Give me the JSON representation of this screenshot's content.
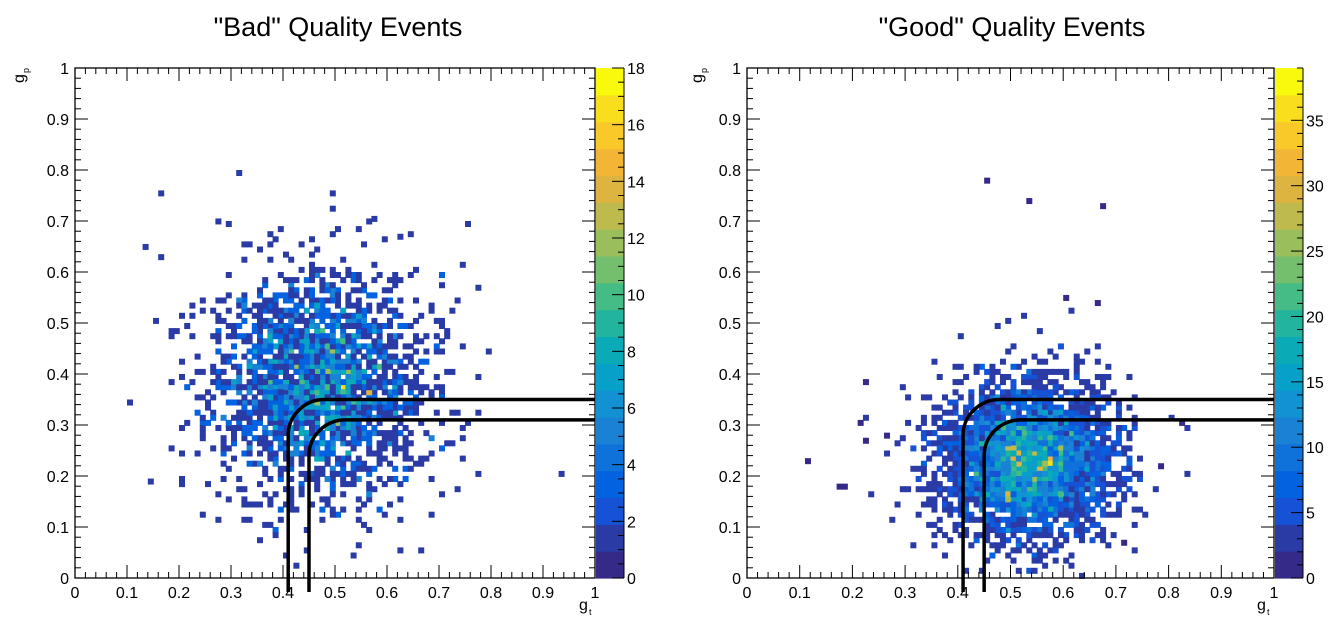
{
  "chart_data": [
    {
      "type": "heatmap",
      "title": "\"Bad\" Quality Events",
      "xlabel": "g",
      "xlabel_sub": "t",
      "ylabel": "g",
      "ylabel_sub": "p",
      "xlim": [
        0,
        1
      ],
      "ylim": [
        0,
        1
      ],
      "x_ticks": [
        "0",
        "0.1",
        "0.2",
        "0.3",
        "0.4",
        "0.5",
        "0.6",
        "0.7",
        "0.8",
        "0.9",
        "1"
      ],
      "y_ticks": [
        "0",
        "0.1",
        "0.2",
        "0.3",
        "0.4",
        "0.5",
        "0.6",
        "0.7",
        "0.8",
        "0.9",
        "1"
      ],
      "colorbar": {
        "min": 0,
        "max": 18,
        "ticks": [
          "0",
          "2",
          "4",
          "6",
          "8",
          "10",
          "12",
          "14",
          "16",
          "18"
        ]
      },
      "distribution": {
        "center_x": 0.47,
        "center_y": 0.38,
        "spread_x": 0.1,
        "spread_y": 0.11,
        "peak_count": 17,
        "bin_width": 0.01
      },
      "outliers": [
        [
          0.13,
          0.645
        ],
        [
          0.27,
          0.695
        ],
        [
          0.16,
          0.625
        ],
        [
          0.15,
          0.5
        ],
        [
          0.14,
          0.185
        ],
        [
          0.24,
          0.12
        ],
        [
          0.37,
          0.67
        ],
        [
          0.56,
          0.695
        ],
        [
          0.62,
          0.665
        ],
        [
          0.77,
          0.565
        ],
        [
          0.72,
          0.32
        ],
        [
          0.75,
          0.3
        ],
        [
          0.1,
          0.34
        ],
        [
          0.45,
          0.66
        ]
      ],
      "cut_lines": [
        {
          "x_start": 0.41,
          "y_end": 0.35,
          "corner": 0.07
        },
        {
          "x_start": 0.45,
          "y_end": 0.31,
          "corner": 0.07
        }
      ]
    },
    {
      "type": "heatmap",
      "title": "\"Good\" Quality Events",
      "xlabel": "g",
      "xlabel_sub": "t",
      "ylabel": "g",
      "ylabel_sub": "p",
      "xlim": [
        0,
        1
      ],
      "ylim": [
        0,
        1
      ],
      "x_ticks": [
        "0",
        "0.1",
        "0.2",
        "0.3",
        "0.4",
        "0.5",
        "0.6",
        "0.7",
        "0.8",
        "0.9",
        "1"
      ],
      "y_ticks": [
        "0",
        "0.1",
        "0.2",
        "0.3",
        "0.4",
        "0.5",
        "0.6",
        "0.7",
        "0.8",
        "0.9",
        "1"
      ],
      "colorbar": {
        "min": 0,
        "max": 39,
        "ticks": [
          "0",
          "5",
          "10",
          "15",
          "20",
          "25",
          "30",
          "35"
        ]
      },
      "distribution": {
        "center_x": 0.53,
        "center_y": 0.23,
        "spread_x": 0.08,
        "spread_y": 0.075,
        "peak_count": 36,
        "bin_width": 0.01
      },
      "outliers": [
        [
          0.45,
          0.775
        ],
        [
          0.53,
          0.735
        ],
        [
          0.67,
          0.725
        ],
        [
          0.11,
          0.225
        ],
        [
          0.17,
          0.175
        ],
        [
          0.18,
          0.175
        ],
        [
          0.22,
          0.265
        ],
        [
          0.21,
          0.3
        ],
        [
          0.26,
          0.275
        ],
        [
          0.22,
          0.38
        ],
        [
          0.6,
          0.545
        ],
        [
          0.66,
          0.535
        ],
        [
          0.82,
          0.3
        ],
        [
          0.78,
          0.215
        ],
        [
          0.71,
          0.065
        ]
      ],
      "cut_lines": [
        {
          "x_start": 0.41,
          "y_end": 0.35,
          "corner": 0.07
        },
        {
          "x_start": 0.45,
          "y_end": 0.31,
          "corner": 0.07
        }
      ]
    }
  ],
  "colors": {
    "palette": [
      "#352a87",
      "#2a3ba6",
      "#1652d5",
      "#0362e0",
      "#0f72da",
      "#1a82d4",
      "#1292d2",
      "#07a0c9",
      "#0aaab6",
      "#22b49d",
      "#45bc85",
      "#74bf6d",
      "#9abe5b",
      "#bfba4d",
      "#ddb43f",
      "#f3b535",
      "#f9c92a",
      "#f8de1c",
      "#f9f90e"
    ]
  }
}
